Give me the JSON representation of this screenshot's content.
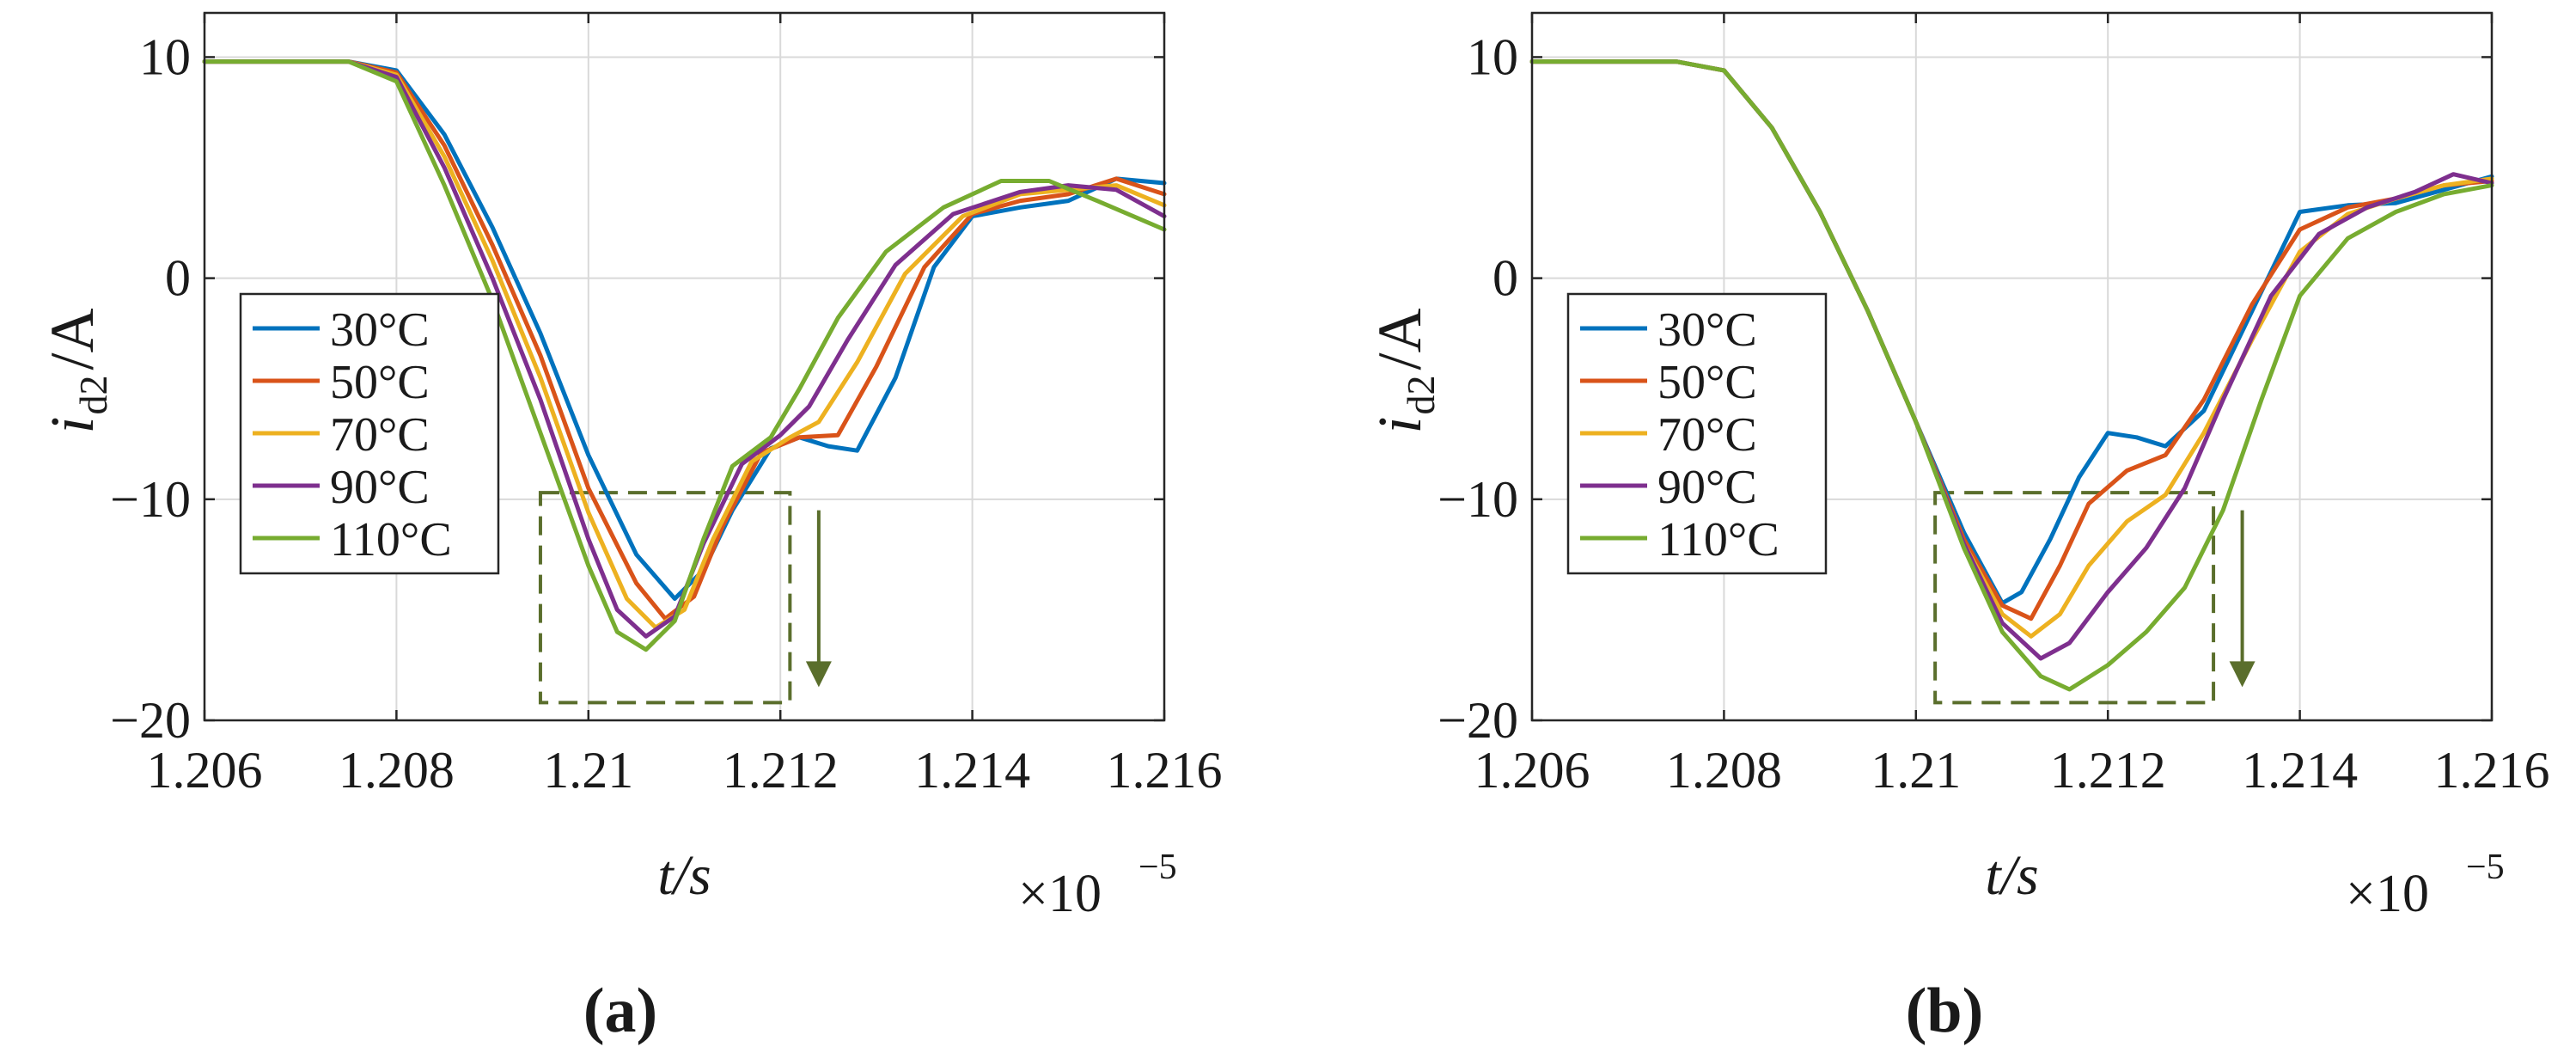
{
  "figure": {
    "colors": {
      "30C": "#0072BD",
      "50C": "#D95319",
      "70C": "#EDB120",
      "90C": "#7E2F8E",
      "110C": "#77AC30",
      "highlight": "#5a6e2c",
      "grid": "#d9d9d9",
      "axis": "#262626"
    }
  },
  "chart_data": [
    {
      "panel_label": "(a)",
      "type": "line",
      "xlabel": "t/s",
      "ylabel_main": "i",
      "ylabel_sub": "d2",
      "ylabel_unit": "/A",
      "x_multiplier": "×10",
      "x_multiplier_exp": "−5",
      "xlim": [
        1.206,
        1.216
      ],
      "ylim": [
        -20,
        12
      ],
      "xticks": [
        1.206,
        1.208,
        1.21,
        1.212,
        1.214,
        1.216
      ],
      "xtick_labels": [
        "1.206",
        "1.208",
        "1.21",
        "1.212",
        "1.214",
        "1.216"
      ],
      "yticks": [
        10,
        0,
        -10,
        -20
      ],
      "ytick_labels": [
        "10",
        "0",
        "−10",
        "−20"
      ],
      "grid": true,
      "legend_position": "lower-left",
      "annotation": {
        "type": "dashed-box-with-down-arrow",
        "x_range": [
          1.2095,
          1.2121
        ],
        "y_range": [
          -19.2,
          -9.7
        ],
        "arrow_x": 1.2124,
        "arrow_y": [
          -10.5,
          -18.5
        ]
      },
      "series": [
        {
          "name": "30°C",
          "color_key": "30C",
          "x": [
            1.206,
            1.2075,
            1.208,
            1.2085,
            1.209,
            1.2095,
            1.21,
            1.2105,
            1.2109,
            1.2112,
            1.2115,
            1.2119,
            1.2122,
            1.2125,
            1.2128,
            1.2132,
            1.2136,
            1.214,
            1.2145,
            1.215,
            1.2155,
            1.216
          ],
          "y": [
            9.8,
            9.8,
            9.4,
            6.5,
            2.3,
            -2.5,
            -8.0,
            -12.5,
            -14.5,
            -13.2,
            -10.5,
            -7.7,
            -7.2,
            -7.6,
            -7.8,
            -4.5,
            0.5,
            2.8,
            3.2,
            3.5,
            4.5,
            4.3
          ]
        },
        {
          "name": "50°C",
          "color_key": "50C",
          "x": [
            1.206,
            1.2075,
            1.208,
            1.2085,
            1.209,
            1.2095,
            1.21,
            1.2105,
            1.2108,
            1.2111,
            1.2114,
            1.2118,
            1.2122,
            1.2126,
            1.213,
            1.2135,
            1.214,
            1.2145,
            1.215,
            1.2155,
            1.216
          ],
          "y": [
            9.8,
            9.8,
            9.3,
            6.0,
            1.5,
            -3.5,
            -9.5,
            -13.8,
            -15.4,
            -14.4,
            -11.2,
            -7.9,
            -7.2,
            -7.1,
            -4.0,
            0.5,
            2.9,
            3.5,
            3.8,
            4.5,
            3.8
          ]
        },
        {
          "name": "70°C",
          "color_key": "70C",
          "x": [
            1.206,
            1.2075,
            1.208,
            1.2085,
            1.209,
            1.2095,
            1.21,
            1.2104,
            1.2107,
            1.211,
            1.2113,
            1.2117,
            1.2121,
            1.2124,
            1.2128,
            1.2133,
            1.2139,
            1.2145,
            1.215,
            1.2155,
            1.216
          ],
          "y": [
            9.8,
            9.8,
            9.2,
            5.5,
            0.8,
            -4.5,
            -10.6,
            -14.5,
            -15.8,
            -15.0,
            -11.8,
            -8.3,
            -7.2,
            -6.5,
            -3.8,
            0.2,
            2.8,
            3.8,
            4.0,
            4.2,
            3.3
          ]
        },
        {
          "name": "90°C",
          "color_key": "90C",
          "x": [
            1.206,
            1.2075,
            1.208,
            1.2085,
            1.209,
            1.2095,
            1.21,
            1.2103,
            1.2106,
            1.2109,
            1.2112,
            1.2116,
            1.212,
            1.2123,
            1.2127,
            1.2132,
            1.2138,
            1.2145,
            1.215,
            1.2155,
            1.216
          ],
          "y": [
            9.8,
            9.8,
            9.1,
            5.0,
            0.0,
            -5.5,
            -11.8,
            -15.0,
            -16.2,
            -15.3,
            -12.0,
            -8.4,
            -7.1,
            -5.8,
            -2.8,
            0.6,
            2.9,
            3.9,
            4.2,
            4.0,
            2.8
          ]
        },
        {
          "name": "110°C",
          "color_key": "110C",
          "x": [
            1.206,
            1.2075,
            1.208,
            1.2085,
            1.209,
            1.2095,
            1.21,
            1.2103,
            1.2106,
            1.2109,
            1.2112,
            1.2115,
            1.2119,
            1.2122,
            1.2126,
            1.2131,
            1.2137,
            1.2143,
            1.2148,
            1.2153,
            1.216
          ],
          "y": [
            9.8,
            9.8,
            8.9,
            4.2,
            -1.0,
            -7.0,
            -13.0,
            -16.0,
            -16.8,
            -15.5,
            -11.8,
            -8.5,
            -7.2,
            -5.0,
            -1.8,
            1.2,
            3.2,
            4.4,
            4.4,
            3.5,
            2.2
          ]
        }
      ]
    },
    {
      "panel_label": "(b)",
      "type": "line",
      "xlabel": "t/s",
      "ylabel_main": "i",
      "ylabel_sub": "d2",
      "ylabel_unit": "/A",
      "x_multiplier": "×10",
      "x_multiplier_exp": "−5",
      "xlim": [
        1.206,
        1.216
      ],
      "ylim": [
        -20,
        12
      ],
      "xticks": [
        1.206,
        1.208,
        1.21,
        1.212,
        1.214,
        1.216
      ],
      "xtick_labels": [
        "1.206",
        "1.208",
        "1.21",
        "1.212",
        "1.214",
        "1.216"
      ],
      "yticks": [
        10,
        0,
        -10,
        -20
      ],
      "ytick_labels": [
        "10",
        "0",
        "−10",
        "−20"
      ],
      "grid": true,
      "legend_position": "lower-left",
      "annotation": {
        "type": "dashed-box-with-down-arrow",
        "x_range": [
          1.2102,
          1.2131
        ],
        "y_range": [
          -19.2,
          -9.7
        ],
        "arrow_x": 1.2134,
        "arrow_y": [
          -10.5,
          -18.5
        ]
      },
      "series": [
        {
          "name": "30°C",
          "color_key": "30C",
          "x": [
            1.206,
            1.2075,
            1.208,
            1.2085,
            1.209,
            1.2095,
            1.21,
            1.2105,
            1.2109,
            1.2111,
            1.2114,
            1.2117,
            1.212,
            1.2123,
            1.2126,
            1.213,
            1.2135,
            1.214,
            1.2145,
            1.215,
            1.2155,
            1.216
          ],
          "y": [
            9.8,
            9.8,
            9.4,
            6.8,
            3.0,
            -1.5,
            -6.5,
            -11.5,
            -14.7,
            -14.2,
            -11.8,
            -9.0,
            -7.0,
            -7.2,
            -7.6,
            -6.0,
            -1.5,
            3.0,
            3.3,
            3.4,
            4.0,
            4.6
          ]
        },
        {
          "name": "50°C",
          "color_key": "50C",
          "x": [
            1.206,
            1.2075,
            1.208,
            1.2085,
            1.209,
            1.2095,
            1.21,
            1.2105,
            1.2109,
            1.2112,
            1.2115,
            1.2118,
            1.2122,
            1.2126,
            1.213,
            1.2135,
            1.214,
            1.2145,
            1.215,
            1.2155,
            1.216
          ],
          "y": [
            9.8,
            9.8,
            9.4,
            6.8,
            3.0,
            -1.5,
            -6.5,
            -11.8,
            -14.8,
            -15.4,
            -13.0,
            -10.2,
            -8.7,
            -8.0,
            -5.5,
            -1.2,
            2.2,
            3.2,
            3.6,
            4.2,
            4.4
          ]
        },
        {
          "name": "70°C",
          "color_key": "70C",
          "x": [
            1.206,
            1.2075,
            1.208,
            1.2085,
            1.209,
            1.2095,
            1.21,
            1.2105,
            1.2109,
            1.2112,
            1.2115,
            1.2118,
            1.2122,
            1.2126,
            1.213,
            1.2135,
            1.214,
            1.2145,
            1.215,
            1.2155,
            1.216
          ],
          "y": [
            9.8,
            9.8,
            9.4,
            6.8,
            3.0,
            -1.5,
            -6.5,
            -12.0,
            -15.2,
            -16.2,
            -15.2,
            -13.0,
            -11.0,
            -9.8,
            -7.0,
            -2.8,
            1.2,
            2.9,
            3.6,
            4.2,
            4.5
          ]
        },
        {
          "name": "90°C",
          "color_key": "90C",
          "x": [
            1.206,
            1.2075,
            1.208,
            1.2085,
            1.209,
            1.2095,
            1.21,
            1.2105,
            1.2109,
            1.2113,
            1.2116,
            1.212,
            1.2124,
            1.2128,
            1.2132,
            1.2137,
            1.2142,
            1.2147,
            1.2152,
            1.2156,
            1.216
          ],
          "y": [
            9.8,
            9.8,
            9.4,
            6.8,
            3.0,
            -1.5,
            -6.5,
            -12.0,
            -15.6,
            -17.2,
            -16.5,
            -14.2,
            -12.2,
            -9.5,
            -5.5,
            -0.8,
            2.0,
            3.2,
            3.9,
            4.7,
            4.3
          ]
        },
        {
          "name": "110°C",
          "color_key": "110C",
          "x": [
            1.206,
            1.2075,
            1.208,
            1.2085,
            1.209,
            1.2095,
            1.21,
            1.2105,
            1.2109,
            1.2113,
            1.2116,
            1.212,
            1.2124,
            1.2128,
            1.2132,
            1.2136,
            1.214,
            1.2145,
            1.215,
            1.2155,
            1.216
          ],
          "y": [
            9.8,
            9.8,
            9.4,
            6.8,
            3.0,
            -1.5,
            -6.5,
            -12.2,
            -16.0,
            -18.0,
            -18.6,
            -17.5,
            -16.0,
            -14.0,
            -10.5,
            -5.5,
            -0.8,
            1.8,
            3.0,
            3.8,
            4.2
          ]
        }
      ]
    }
  ]
}
